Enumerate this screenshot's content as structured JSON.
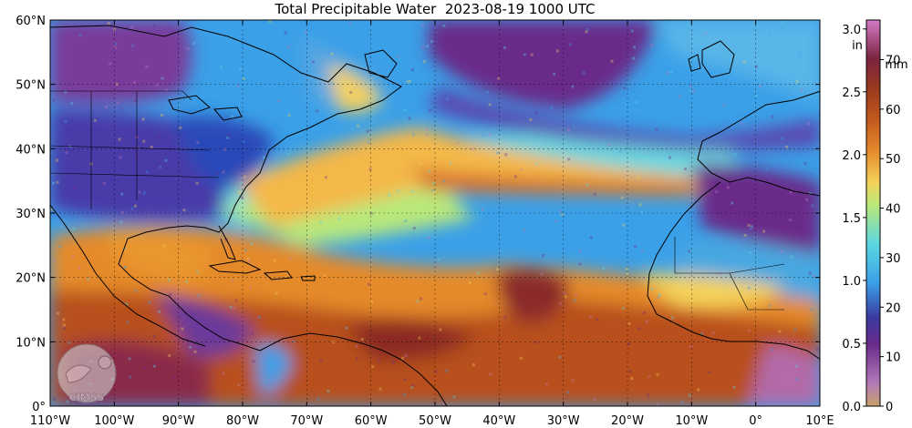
{
  "title": "Total Precipitable Water  2023-08-19 1000 UTC",
  "map": {
    "lon_range": [
      -110,
      10
    ],
    "lat_range": [
      0,
      60
    ],
    "lon_ticks": [
      "110°W",
      "100°W",
      "90°W",
      "80°W",
      "70°W",
      "60°W",
      "50°W",
      "40°W",
      "30°W",
      "20°W",
      "10°W",
      "0°",
      "10°E"
    ],
    "lat_ticks": [
      "0°",
      "10°N",
      "20°N",
      "30°N",
      "40°N",
      "50°N",
      "60°N"
    ],
    "grid": true
  },
  "colorbar": {
    "in_label": "in",
    "mm_label": "mm",
    "in_ticks": [
      "0.0",
      "0.5",
      "1.0",
      "1.5",
      "2.0",
      "2.5",
      "3.0"
    ],
    "mm_ticks": [
      "0",
      "10",
      "20",
      "30",
      "40",
      "50",
      "60",
      "70"
    ],
    "range_mm": [
      0,
      78
    ]
  },
  "logo": {
    "text": "CIMSS"
  },
  "colors": {
    "dry": "#6a2a8a",
    "blue": "#3aa0e8",
    "cyan": "#5ad7e0",
    "green": "#b9e87a",
    "yellow": "#f4d25a",
    "orange": "#e58a2c",
    "moist": "#9a3a1e",
    "pink": "#c27ab4"
  }
}
